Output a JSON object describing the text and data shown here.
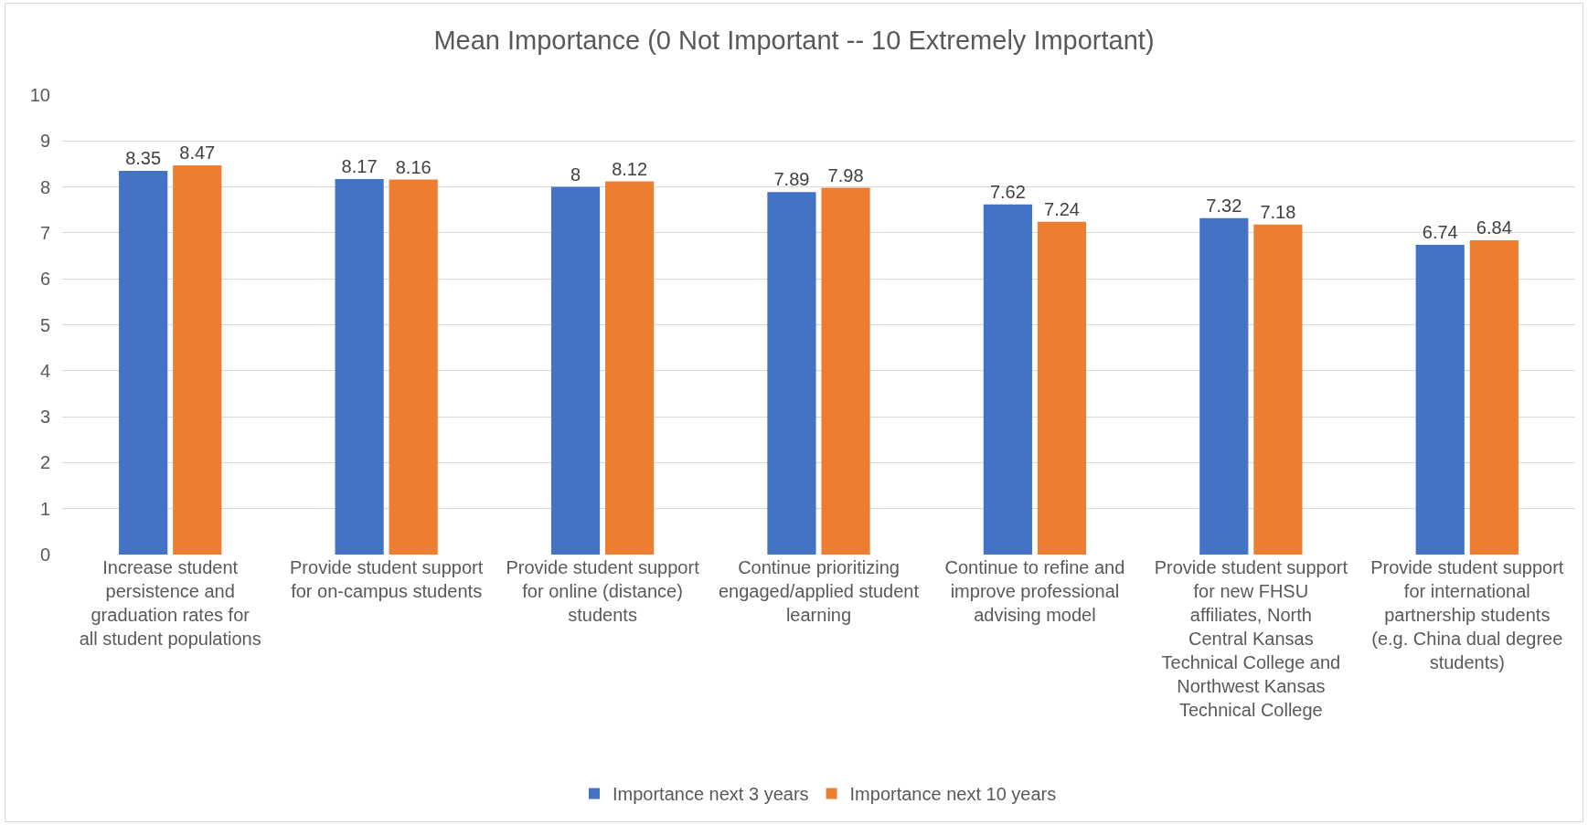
{
  "chart_data": {
    "type": "bar",
    "title": "Mean Importance (0 Not Important -- 10 Extremely Important)",
    "categories": [
      "Increase student persistence and graduation rates for all student populations",
      "Provide student support for on-campus students",
      "Provide student support for online (distance) students",
      "Continue prioritizing engaged/applied student learning",
      "Continue to refine and improve professional advising model",
      "Provide student support for new FHSU affiliates, North Central Kansas Technical College and Northwest Kansas Technical College",
      "Provide student support for international partnership students (e.g. China dual degree students)"
    ],
    "series": [
      {
        "name": "Importance next 3 years",
        "color": "#4472c4",
        "values": [
          8.35,
          8.17,
          8,
          7.89,
          7.62,
          7.32,
          6.74
        ]
      },
      {
        "name": "Importance next 10 years",
        "color": "#ed7d31",
        "values": [
          8.47,
          8.16,
          8.12,
          7.98,
          7.24,
          7.18,
          6.84
        ]
      }
    ],
    "ylim": [
      0,
      10
    ],
    "yticks": [
      0,
      1,
      2,
      3,
      4,
      5,
      6,
      7,
      8,
      9,
      10
    ],
    "grid": "y",
    "legend": "bottom",
    "data_labels": true
  }
}
